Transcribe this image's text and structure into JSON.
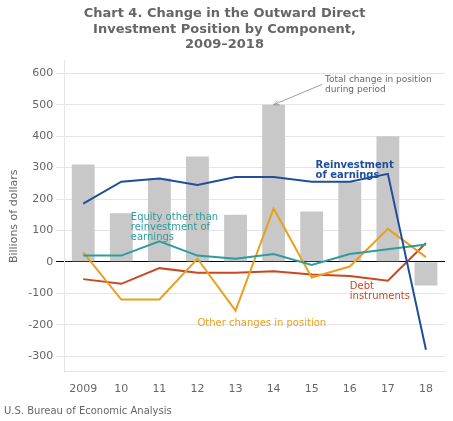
{
  "chart_data": {
    "type": "bar",
    "title": "Chart 4. Change in the Outward Direct\nInvestment Position by Component,\n2009–2018",
    "y_label": "Billions of dollars",
    "footnote": "U.S. Bureau of Economic Analysis",
    "categories": [
      "2009",
      "10",
      "11",
      "12",
      "13",
      "14",
      "15",
      "16",
      "17",
      "18"
    ],
    "series": [
      {
        "name": "Total change in position\nduring period",
        "type": "bar",
        "color": "#c8c8c8",
        "values": [
          310,
          155,
          265,
          335,
          150,
          500,
          160,
          255,
          400,
          -75
        ]
      },
      {
        "name": "Reinvestment\nof earnings",
        "type": "line",
        "color": "#1f4e9c",
        "values": [
          185,
          255,
          265,
          245,
          270,
          270,
          255,
          255,
          280,
          -280
        ]
      },
      {
        "name": "Equity other than\nreinvestment of\nearnings",
        "type": "line",
        "color": "#2e9c9c",
        "values": [
          20,
          20,
          65,
          20,
          10,
          25,
          -10,
          25,
          40,
          55
        ]
      },
      {
        "name": "Other changes in position",
        "type": "line",
        "color": "#e8a020",
        "values": [
          30,
          -120,
          -120,
          10,
          -155,
          170,
          -50,
          -15,
          105,
          15
        ]
      },
      {
        "name": "Debt\ninstruments",
        "type": "line",
        "color": "#c84820",
        "values": [
          -55,
          -70,
          -20,
          -35,
          -35,
          -30,
          -40,
          -45,
          -60,
          60
        ]
      }
    ],
    "ylim": [
      -350,
      640
    ],
    "yticks": [
      -300,
      -200,
      -100,
      0,
      100,
      200,
      300,
      400,
      500,
      600
    ],
    "grid": true
  }
}
